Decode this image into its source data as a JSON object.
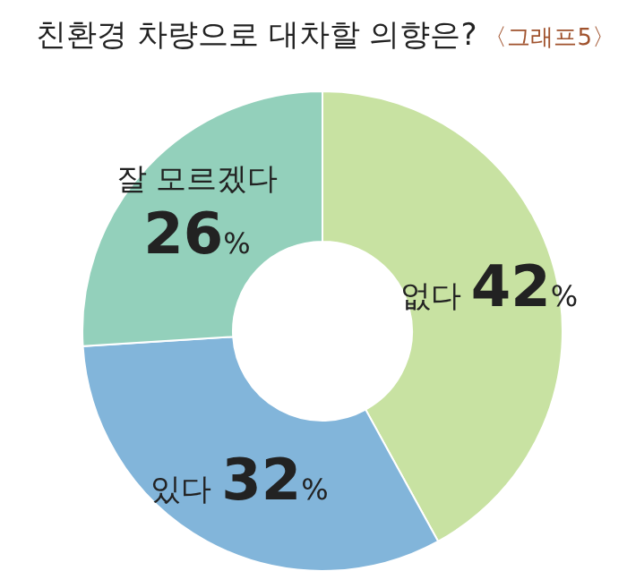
{
  "chart_data": {
    "type": "donut",
    "title": "친환경 차량으로 대차할 의향은?",
    "subtitle": "〈그래프5〉",
    "categories": [
      "없다",
      "있다",
      "잘 모르겠다"
    ],
    "values": [
      42,
      32,
      26
    ],
    "colors": [
      "#c8e2a2",
      "#82b5da",
      "#93d0bb"
    ],
    "value_labels": [
      "42%",
      "32%",
      "26%"
    ],
    "legend": false
  }
}
